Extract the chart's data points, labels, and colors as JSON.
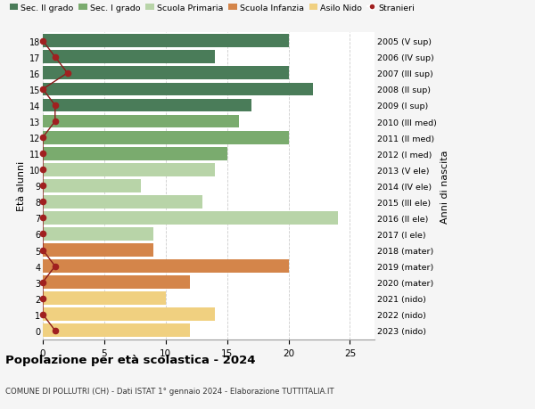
{
  "ages": [
    18,
    17,
    16,
    15,
    14,
    13,
    12,
    11,
    10,
    9,
    8,
    7,
    6,
    5,
    4,
    3,
    2,
    1,
    0
  ],
  "right_labels": [
    "2005 (V sup)",
    "2006 (IV sup)",
    "2007 (III sup)",
    "2008 (II sup)",
    "2009 (I sup)",
    "2010 (III med)",
    "2011 (II med)",
    "2012 (I med)",
    "2013 (V ele)",
    "2014 (IV ele)",
    "2015 (III ele)",
    "2016 (II ele)",
    "2017 (I ele)",
    "2018 (mater)",
    "2019 (mater)",
    "2020 (mater)",
    "2021 (nido)",
    "2022 (nido)",
    "2023 (nido)"
  ],
  "bar_values": [
    20,
    14,
    20,
    22,
    17,
    16,
    20,
    15,
    14,
    8,
    13,
    24,
    9,
    9,
    20,
    12,
    10,
    14,
    12
  ],
  "bar_colors": [
    "#4a7c59",
    "#4a7c59",
    "#4a7c59",
    "#4a7c59",
    "#4a7c59",
    "#7aab6e",
    "#7aab6e",
    "#7aab6e",
    "#b8d4a8",
    "#b8d4a8",
    "#b8d4a8",
    "#b8d4a8",
    "#b8d4a8",
    "#d4854a",
    "#d4854a",
    "#d4854a",
    "#f0d080",
    "#f0d080",
    "#f0d080"
  ],
  "stranieri_values": [
    0,
    1,
    2,
    0,
    1,
    1,
    0,
    0,
    0,
    0,
    0,
    0,
    0,
    0,
    1,
    0,
    0,
    0,
    1
  ],
  "legend_labels": [
    "Sec. II grado",
    "Sec. I grado",
    "Scuola Primaria",
    "Scuola Infanzia",
    "Asilo Nido",
    "Stranieri"
  ],
  "legend_colors": [
    "#4a7c59",
    "#7aab6e",
    "#b8d4a8",
    "#d4854a",
    "#f0d080",
    "#a02020"
  ],
  "title": "Popolazione per età scolastica - 2024",
  "subtitle": "COMUNE DI POLLUTRI (CH) - Dati ISTAT 1° gennaio 2024 - Elaborazione TUTTITALIA.IT",
  "ylabel_left": "Età alunni",
  "ylabel_right": "Anni di nascita",
  "xlim": [
    0,
    27
  ],
  "xticks": [
    0,
    5,
    10,
    15,
    20,
    25
  ],
  "background_color": "#f5f5f5",
  "bar_background": "#ffffff",
  "grid_color": "#cccccc"
}
